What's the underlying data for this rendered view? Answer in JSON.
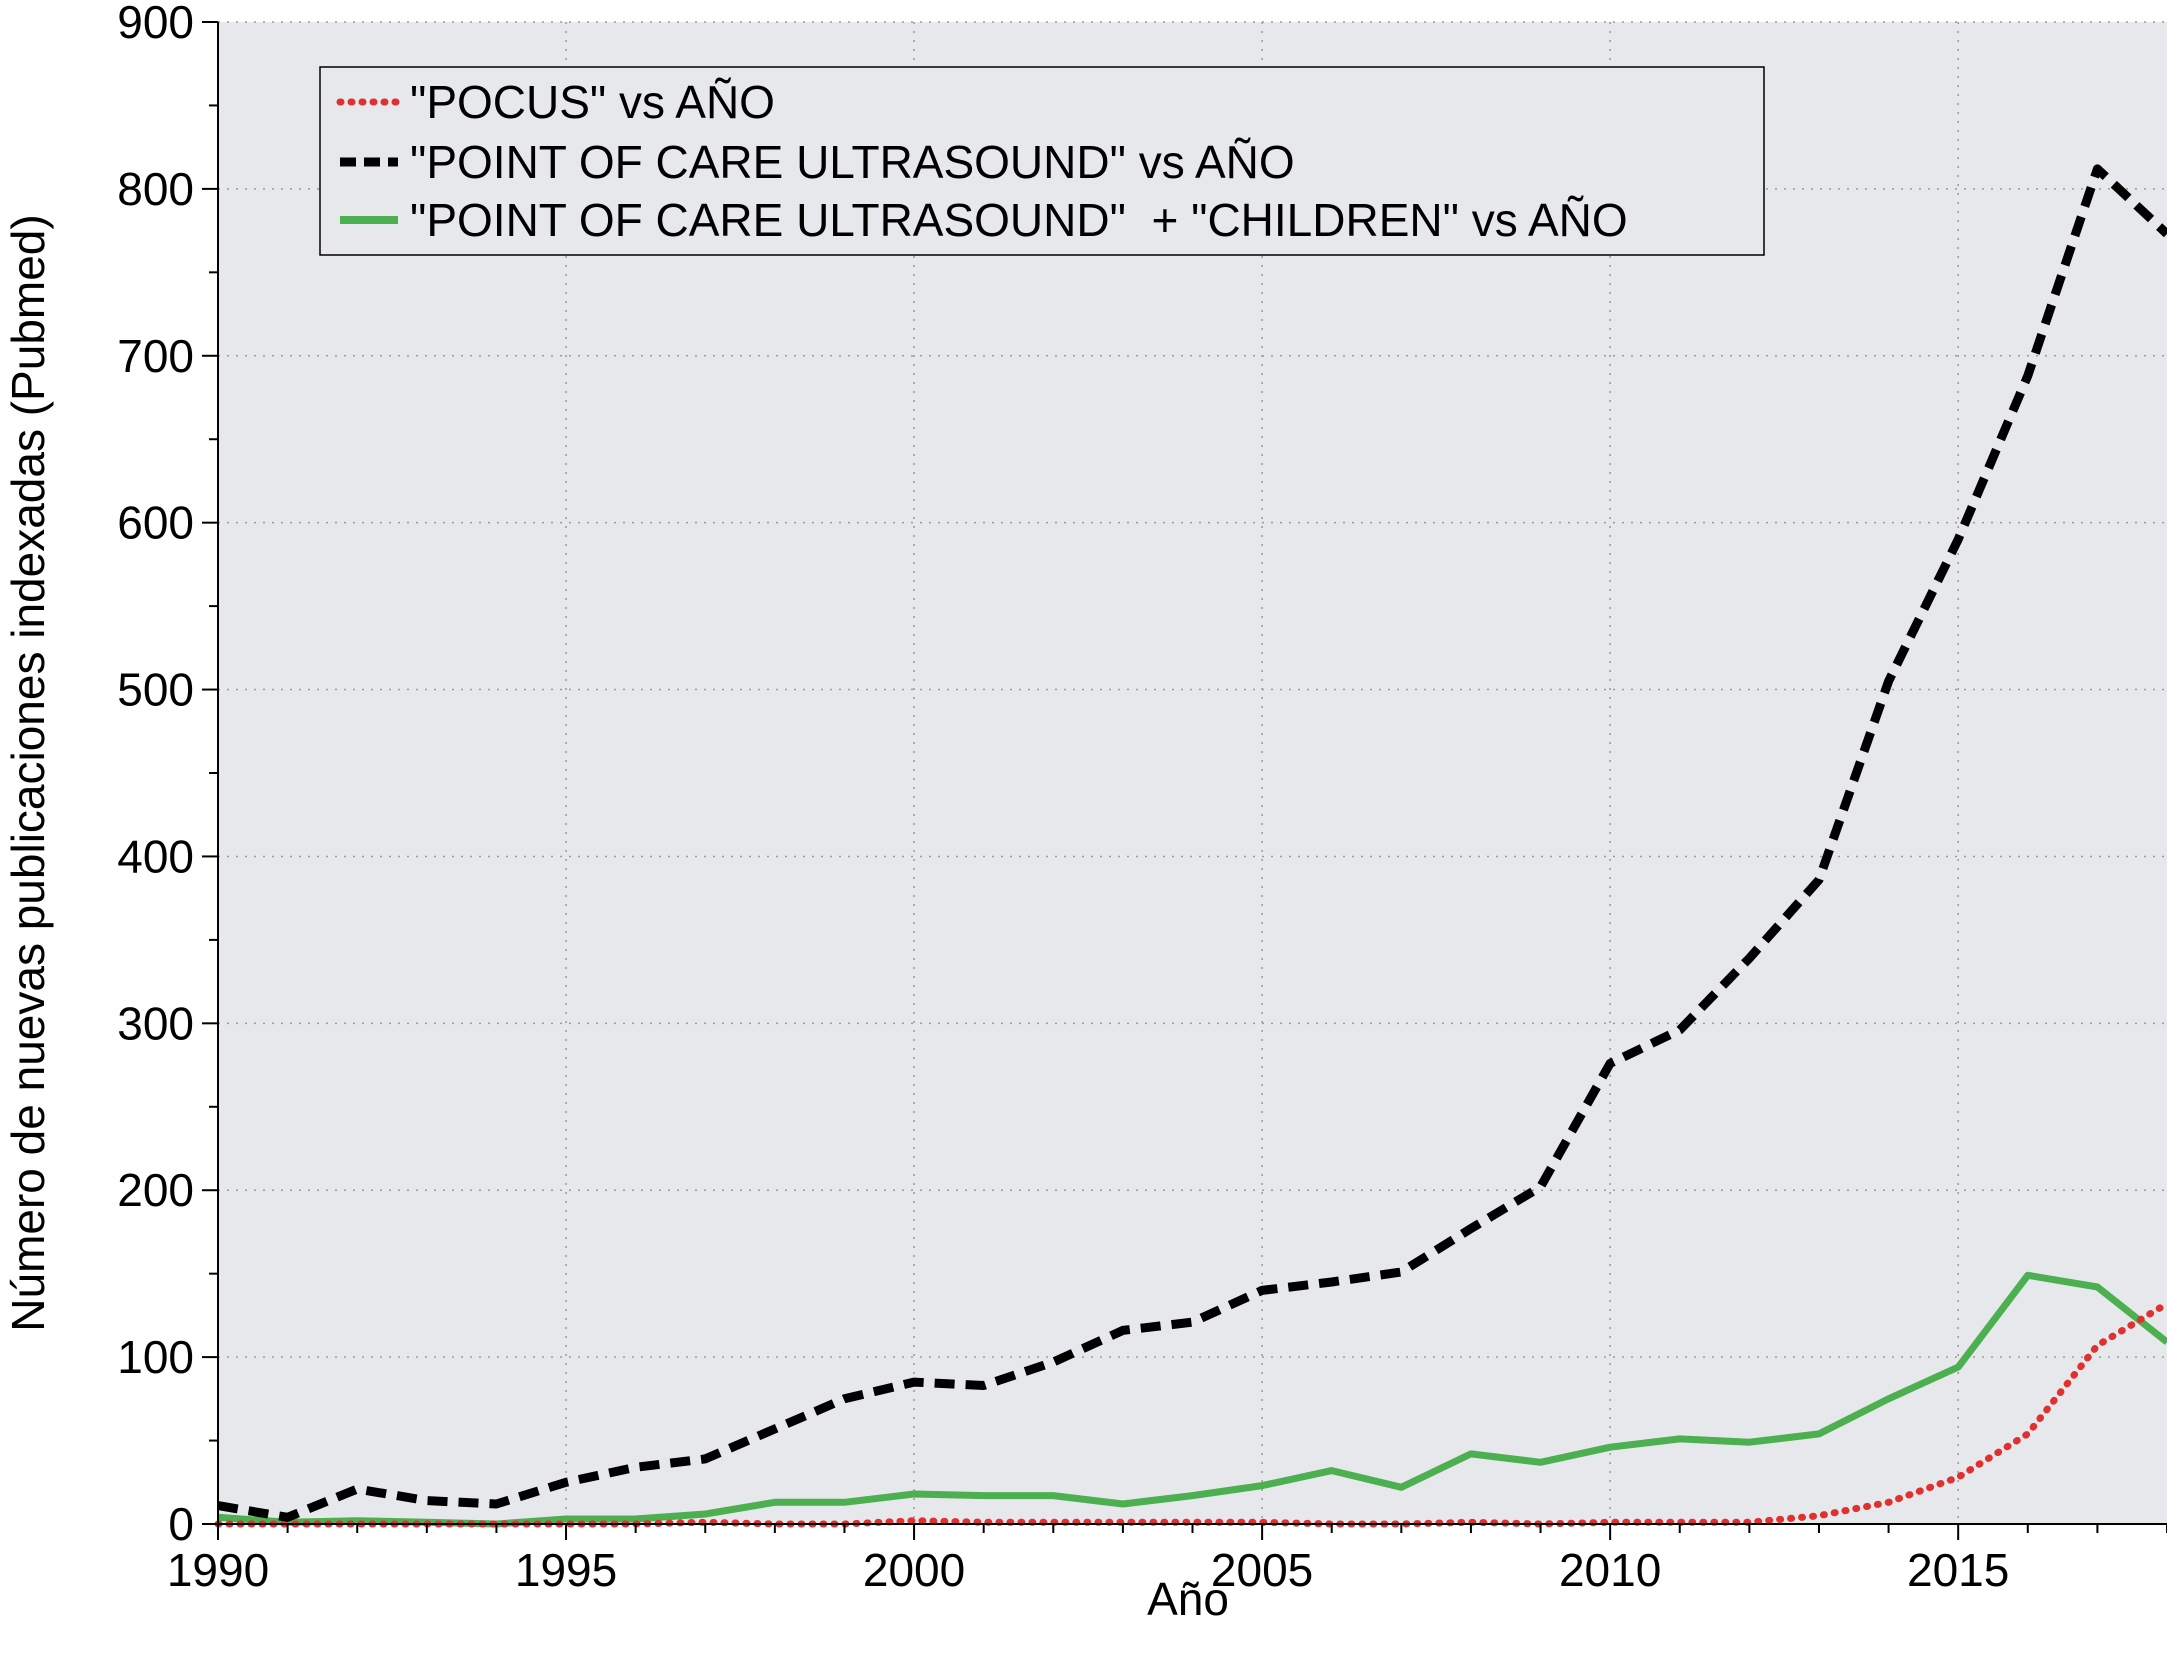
{
  "chart_data": {
    "type": "line",
    "xlabel": "Año",
    "ylabel": "Número de nuevas publicaciones indexadas (Pubmed)",
    "xlim": [
      1990,
      2018
    ],
    "ylim": [
      0,
      900
    ],
    "x_ticks": [
      "1990",
      "1995",
      "2000",
      "2005",
      "2010",
      "2015"
    ],
    "y_ticks": [
      "0",
      "100",
      "200",
      "300",
      "400",
      "500",
      "600",
      "700",
      "800",
      "900"
    ],
    "grid": true,
    "legend_position": "top-left",
    "x": [
      1990,
      1991,
      1992,
      1993,
      1994,
      1995,
      1996,
      1997,
      1998,
      1999,
      2000,
      2001,
      2002,
      2003,
      2004,
      2005,
      2006,
      2007,
      2008,
      2009,
      2010,
      2011,
      2012,
      2013,
      2014,
      2015,
      2016,
      2017,
      2018
    ],
    "series": [
      {
        "name": "\"POCUS\" vs AÑO",
        "color": "#e03030",
        "style": "dotted",
        "values": [
          0,
          0,
          0,
          0,
          0,
          0,
          0,
          1,
          0,
          0,
          2,
          1,
          1,
          1,
          1,
          1,
          0,
          0,
          1,
          0,
          1,
          1,
          1,
          5,
          13,
          28,
          54,
          107,
          132
        ]
      },
      {
        "name": "\"POINT OF CARE ULTRASOUND\" vs AÑO",
        "color": "#000000",
        "style": "dashed",
        "values": [
          11,
          4,
          21,
          14,
          12,
          25,
          34,
          39,
          57,
          75,
          85,
          83,
          97,
          116,
          121,
          140,
          145,
          151,
          177,
          202,
          276,
          296,
          339,
          386,
          505,
          590,
          688,
          812,
          773
        ]
      },
      {
        "name": "\"POINT OF CARE ULTRASOUND\"  + \"CHILDREN\" vs AÑO",
        "color": "#4caf50",
        "style": "solid",
        "values": [
          4,
          1,
          2,
          1,
          0,
          3,
          3,
          6,
          13,
          13,
          18,
          17,
          17,
          12,
          17,
          23,
          32,
          22,
          42,
          37,
          46,
          51,
          49,
          54,
          75,
          94,
          149,
          142,
          109
        ]
      }
    ]
  }
}
